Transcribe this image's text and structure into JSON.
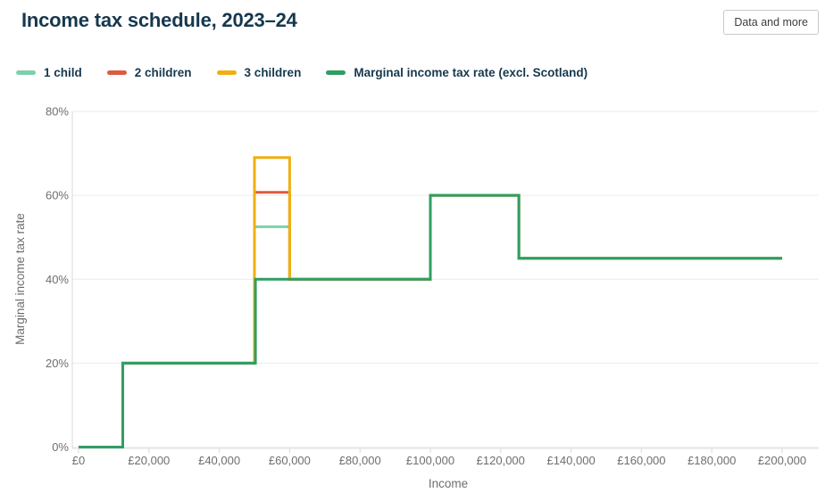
{
  "header": {
    "title": "Income tax schedule, 2023–24",
    "data_button_label": "Data and more"
  },
  "legend": [
    {
      "label": "1 child",
      "color": "#7ed0ac"
    },
    {
      "label": "2 children",
      "color": "#dc5b41"
    },
    {
      "label": "3 children",
      "color": "#eeb011"
    },
    {
      "label": "Marginal income tax rate (excl. Scotland)",
      "color": "#2f9e63"
    }
  ],
  "chart_data": {
    "type": "line",
    "step": true,
    "title": "Income tax schedule, 2023–24",
    "xlabel": "Income",
    "ylabel": "Marginal income tax rate",
    "xlim": [
      0,
      200000
    ],
    "ylim": [
      0,
      80
    ],
    "grid": "horizontal",
    "legend_position": "top",
    "x_ticks": [
      {
        "value": 0,
        "label": "£0"
      },
      {
        "value": 20000,
        "label": "£20,000"
      },
      {
        "value": 40000,
        "label": "£40,000"
      },
      {
        "value": 60000,
        "label": "£60,000"
      },
      {
        "value": 80000,
        "label": "£80,000"
      },
      {
        "value": 100000,
        "label": "£100,000"
      },
      {
        "value": 120000,
        "label": "£120,000"
      },
      {
        "value": 140000,
        "label": "£140,000"
      },
      {
        "value": 160000,
        "label": "£160,000"
      },
      {
        "value": 180000,
        "label": "£180,000"
      },
      {
        "value": 200000,
        "label": "£200,000"
      }
    ],
    "y_ticks": [
      {
        "value": 0,
        "label": "0%"
      },
      {
        "value": 20,
        "label": "20%"
      },
      {
        "value": 40,
        "label": "40%"
      },
      {
        "value": 60,
        "label": "60%"
      },
      {
        "value": 80,
        "label": "80%"
      }
    ],
    "series": [
      {
        "name": "1 child",
        "color": "#7ed0ac",
        "points": [
          [
            0,
            0
          ],
          [
            12570,
            0
          ],
          [
            12570,
            20
          ],
          [
            50000,
            20
          ],
          [
            50000,
            52.5
          ],
          [
            60000,
            52.5
          ],
          [
            60000,
            40
          ],
          [
            100000,
            40
          ],
          [
            100000,
            60
          ],
          [
            125140,
            60
          ],
          [
            125140,
            45
          ],
          [
            200000,
            45
          ]
        ]
      },
      {
        "name": "2 children",
        "color": "#dc5b41",
        "points": [
          [
            0,
            0
          ],
          [
            12570,
            0
          ],
          [
            12570,
            20
          ],
          [
            50000,
            20
          ],
          [
            50000,
            60.7
          ],
          [
            60000,
            60.7
          ],
          [
            60000,
            40
          ],
          [
            100000,
            40
          ],
          [
            100000,
            60
          ],
          [
            125140,
            60
          ],
          [
            125140,
            45
          ],
          [
            200000,
            45
          ]
        ]
      },
      {
        "name": "3 children",
        "color": "#eeb011",
        "points": [
          [
            0,
            0
          ],
          [
            12570,
            0
          ],
          [
            12570,
            20
          ],
          [
            50000,
            20
          ],
          [
            50000,
            69
          ],
          [
            60000,
            69
          ],
          [
            60000,
            40
          ],
          [
            100000,
            40
          ],
          [
            100000,
            60
          ],
          [
            125140,
            60
          ],
          [
            125140,
            45
          ],
          [
            200000,
            45
          ]
        ]
      },
      {
        "name": "Marginal income tax rate (excl. Scotland)",
        "color": "#2f9e63",
        "points": [
          [
            0,
            0
          ],
          [
            12570,
            0
          ],
          [
            12570,
            20
          ],
          [
            50270,
            20
          ],
          [
            50270,
            40
          ],
          [
            100000,
            40
          ],
          [
            100000,
            60
          ],
          [
            125140,
            60
          ],
          [
            125140,
            45
          ],
          [
            200000,
            45
          ]
        ]
      }
    ]
  }
}
